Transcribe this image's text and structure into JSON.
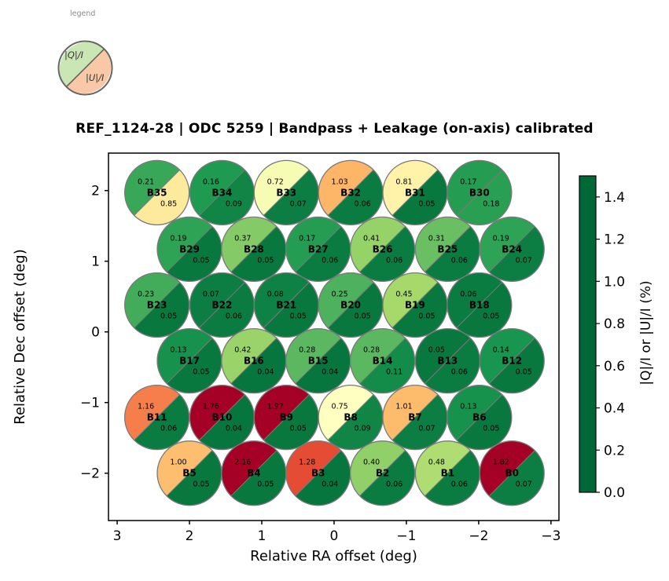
{
  "legend": {
    "caption": "legend",
    "q_label": "|Q|/I",
    "u_label": "|U|/I",
    "q_color": "#c9e6b4",
    "u_color": "#f9c9a7",
    "edge_color": "#666666"
  },
  "chart_data": {
    "type": "scatter",
    "marker": "split-circle: upper-left half = |Q|/I, lower-right half = |U|/I, colored by value",
    "title": "REF_1124-28  |  ODC 5259  |  Bandpass + Leakage (on-axis) calibrated",
    "xlabel": "Relative RA offset (deg)",
    "ylabel": "Relative Dec offset (deg)",
    "xlim": [
      3.12,
      -3.11
    ],
    "ylim": [
      -2.67,
      2.53
    ],
    "x_axis_inverted": true,
    "grid": false,
    "x_ticks": [
      3,
      2,
      1,
      0,
      -1,
      -2,
      -3
    ],
    "x_tick_labels": [
      "3",
      "2",
      "1",
      "0",
      "−1",
      "−2",
      "−3"
    ],
    "y_ticks": [
      2,
      1,
      0,
      -1,
      -2
    ],
    "y_tick_labels": [
      "2",
      "1",
      "0",
      "−1",
      "−2"
    ],
    "beam_edge_color": "#7a7a7a",
    "beam_radius_deg": 0.45,
    "colorbar": {
      "label": "|Q|/I  or  |U|/I  (%)",
      "vmin": 0.0,
      "vmax": 1.5,
      "ticks": [
        0.0,
        0.2,
        0.4,
        0.6,
        0.8,
        1.0,
        1.2,
        1.4
      ],
      "tick_labels": [
        "0.0",
        "0.2",
        "0.4",
        "0.6",
        "0.8",
        "1.0",
        "1.2",
        "1.4"
      ],
      "cmap_name": "RdYlGn_r",
      "cmap_stops": [
        "#006837",
        "#1a9850",
        "#66bd63",
        "#a6d96a",
        "#d9ef8b",
        "#ffffbf",
        "#fee08b",
        "#fdae61",
        "#f46d43",
        "#d73027",
        "#a50026"
      ]
    },
    "beams": [
      {
        "name": "B35",
        "ra": 2.45,
        "dec": 1.97,
        "q": 0.21,
        "u": 0.85
      },
      {
        "name": "B34",
        "ra": 1.55,
        "dec": 1.97,
        "q": 0.16,
        "u": 0.09
      },
      {
        "name": "B33",
        "ra": 0.66,
        "dec": 1.97,
        "q": 0.72,
        "u": 0.07
      },
      {
        "name": "B32",
        "ra": -0.23,
        "dec": 1.97,
        "q": 1.03,
        "u": 0.06
      },
      {
        "name": "B31",
        "ra": -1.12,
        "dec": 1.97,
        "q": 0.81,
        "u": 0.05
      },
      {
        "name": "B30",
        "ra": -2.01,
        "dec": 1.97,
        "q": 0.17,
        "u": 0.18
      },
      {
        "name": "B29",
        "ra": 2.0,
        "dec": 1.17,
        "q": 0.19,
        "u": 0.05
      },
      {
        "name": "B28",
        "ra": 1.11,
        "dec": 1.17,
        "q": 0.37,
        "u": 0.05
      },
      {
        "name": "B27",
        "ra": 0.22,
        "dec": 1.17,
        "q": 0.17,
        "u": 0.06
      },
      {
        "name": "B26",
        "ra": -0.67,
        "dec": 1.17,
        "q": 0.41,
        "u": 0.06
      },
      {
        "name": "B25",
        "ra": -1.57,
        "dec": 1.17,
        "q": 0.31,
        "u": 0.06
      },
      {
        "name": "B24",
        "ra": -2.46,
        "dec": 1.17,
        "q": 0.19,
        "u": 0.07
      },
      {
        "name": "B23",
        "ra": 2.45,
        "dec": 0.38,
        "q": 0.23,
        "u": 0.05
      },
      {
        "name": "B22",
        "ra": 1.55,
        "dec": 0.38,
        "q": 0.07,
        "u": 0.06
      },
      {
        "name": "B21",
        "ra": 0.66,
        "dec": 0.38,
        "q": 0.08,
        "u": 0.05
      },
      {
        "name": "B20",
        "ra": -0.23,
        "dec": 0.38,
        "q": 0.25,
        "u": 0.05
      },
      {
        "name": "B19",
        "ra": -1.12,
        "dec": 0.38,
        "q": 0.45,
        "u": 0.05
      },
      {
        "name": "B18",
        "ra": -2.01,
        "dec": 0.38,
        "q": 0.06,
        "u": 0.05
      },
      {
        "name": "B17",
        "ra": 2.0,
        "dec": -0.41,
        "q": 0.13,
        "u": 0.05
      },
      {
        "name": "B16",
        "ra": 1.11,
        "dec": -0.41,
        "q": 0.42,
        "u": 0.04
      },
      {
        "name": "B15",
        "ra": 0.22,
        "dec": -0.41,
        "q": 0.28,
        "u": 0.04
      },
      {
        "name": "B14",
        "ra": -0.67,
        "dec": -0.41,
        "q": 0.28,
        "u": 0.11
      },
      {
        "name": "B13",
        "ra": -1.57,
        "dec": -0.41,
        "q": 0.05,
        "u": 0.06
      },
      {
        "name": "B12",
        "ra": -2.46,
        "dec": -0.41,
        "q": 0.14,
        "u": 0.05
      },
      {
        "name": "B11",
        "ra": 2.45,
        "dec": -1.21,
        "q": 1.16,
        "u": 0.06
      },
      {
        "name": "B10",
        "ra": 1.55,
        "dec": -1.21,
        "q": 1.76,
        "u": 0.04
      },
      {
        "name": "B9",
        "ra": 0.66,
        "dec": -1.21,
        "q": 1.97,
        "u": 0.05
      },
      {
        "name": "B8",
        "ra": -0.23,
        "dec": -1.21,
        "q": 0.75,
        "u": 0.09
      },
      {
        "name": "B7",
        "ra": -1.12,
        "dec": -1.21,
        "q": 1.01,
        "u": 0.07
      },
      {
        "name": "B6",
        "ra": -2.01,
        "dec": -1.21,
        "q": 0.13,
        "u": 0.05
      },
      {
        "name": "B5",
        "ra": 2.0,
        "dec": -2.0,
        "q": 1.0,
        "u": 0.05
      },
      {
        "name": "B4",
        "ra": 1.11,
        "dec": -2.0,
        "q": 2.16,
        "u": 0.05
      },
      {
        "name": "B3",
        "ra": 0.22,
        "dec": -2.0,
        "q": 1.28,
        "u": 0.04
      },
      {
        "name": "B2",
        "ra": -0.67,
        "dec": -2.0,
        "q": 0.4,
        "u": 0.06
      },
      {
        "name": "B1",
        "ra": -1.57,
        "dec": -2.0,
        "q": 0.48,
        "u": 0.06
      },
      {
        "name": "B0",
        "ra": -2.46,
        "dec": -2.0,
        "q": 1.82,
        "u": 0.07
      }
    ]
  }
}
